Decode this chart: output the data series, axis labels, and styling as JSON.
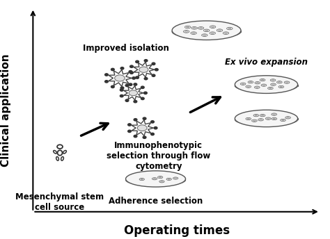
{
  "xlabel": "Operating times",
  "ylabel": "Clinical application",
  "background_color": "#ffffff",
  "text_color": "#000000",
  "labels": {
    "mesenchymal": "Mesenchymal stem\ncell source",
    "improved": "Improved isolation",
    "immunophenotypic": "Immunophenotypic\nselection through flow\ncytometry",
    "adherence": "Adherence selection",
    "ex_vivo": "Ex vivo expansion"
  },
  "xlabel_fontsize": 12,
  "ylabel_fontsize": 11,
  "label_fontsize": 8.5
}
